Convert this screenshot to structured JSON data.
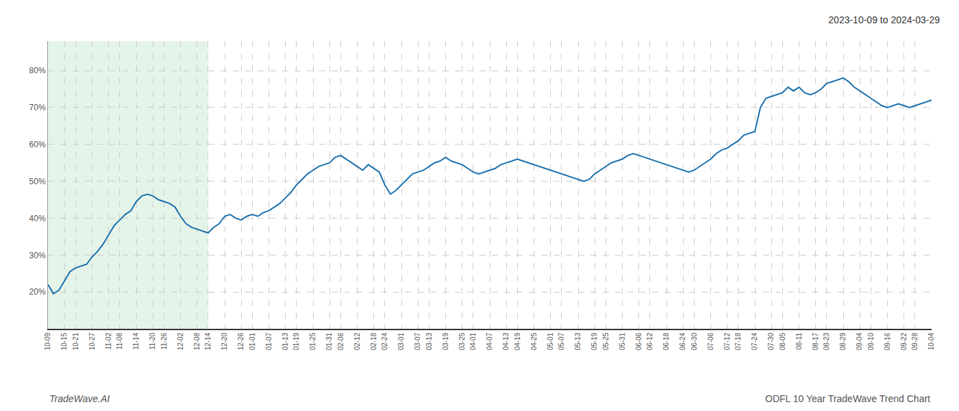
{
  "chart_data": {
    "type": "line",
    "title": "2023-10-09 to 2024-03-29",
    "annotations": [
      {
        "text": "TradeWave.AI"
      },
      {
        "text": "ODFL 10 Year TradeWave Trend Chart"
      }
    ],
    "categories": [
      "10-09",
      null,
      null,
      "10-15",
      null,
      "10-21",
      null,
      null,
      "10-27",
      null,
      null,
      "11-02",
      null,
      "11-08",
      null,
      null,
      "11-14",
      null,
      null,
      "11-20",
      null,
      "11-26",
      null,
      null,
      "12-02",
      null,
      null,
      "12-08",
      null,
      "12-14",
      null,
      null,
      "12-20",
      null,
      null,
      "12-26",
      null,
      "01-01",
      null,
      null,
      "01-07",
      null,
      null,
      "01-13",
      null,
      "01-19",
      null,
      null,
      "01-25",
      null,
      null,
      "01-31",
      null,
      "02-06",
      null,
      null,
      "02-12",
      null,
      null,
      "02-18",
      null,
      "02-24",
      null,
      null,
      "03-01",
      null,
      null,
      "03-07",
      null,
      "03-13",
      null,
      null,
      "03-19",
      null,
      null,
      "03-25",
      null,
      "04-01",
      null,
      null,
      "04-07",
      null,
      null,
      "04-13",
      null,
      "04-19",
      null,
      null,
      "04-25",
      null,
      null,
      "05-01",
      null,
      "05-07",
      null,
      null,
      "05-13",
      null,
      null,
      "05-19",
      null,
      "05-25",
      null,
      null,
      "05-31",
      null,
      null,
      "06-06",
      null,
      "06-12",
      null,
      null,
      "06-18",
      null,
      null,
      "06-24",
      null,
      "06-30",
      null,
      null,
      "07-06",
      null,
      null,
      "07-12",
      null,
      "07-18",
      null,
      null,
      "07-24",
      null,
      null,
      "07-30",
      null,
      "08-05",
      null,
      null,
      "08-11",
      null,
      null,
      "08-17",
      null,
      "08-23",
      null,
      null,
      "08-29",
      null,
      null,
      "09-04",
      null,
      "09-10",
      null,
      null,
      "09-16",
      null,
      null,
      "09-22",
      null,
      "09-28",
      null,
      null,
      "10-04"
    ],
    "values": [
      22.0,
      19.5,
      20.5,
      23.0,
      25.5,
      26.5,
      27.0,
      27.5,
      29.5,
      31.0,
      33.0,
      35.5,
      38.0,
      39.5,
      41.0,
      42.0,
      44.5,
      46.0,
      46.5,
      46.0,
      45.0,
      44.5,
      44.0,
      43.0,
      40.5,
      38.5,
      37.5,
      37.0,
      36.5,
      36.0,
      37.5,
      38.5,
      40.5,
      41.0,
      40.0,
      39.5,
      40.5,
      41.0,
      40.5,
      41.5,
      42.0,
      43.0,
      44.0,
      45.5,
      47.0,
      49.0,
      50.5,
      52.0,
      53.0,
      54.0,
      54.5,
      55.0,
      56.5,
      57.0,
      56.0,
      55.0,
      54.0,
      53.0,
      54.5,
      53.5,
      52.5,
      49.0,
      46.5,
      47.5,
      49.0,
      50.5,
      52.0,
      52.5,
      53.0,
      54.0,
      55.0,
      55.5,
      56.5,
      55.5,
      55.0,
      54.5,
      53.5,
      52.5,
      52.0,
      52.5,
      53.0,
      53.5,
      54.5,
      55.0,
      55.5,
      56.0,
      55.5,
      55.0,
      54.5,
      54.0,
      53.5,
      53.0,
      52.5,
      52.0,
      51.5,
      51.0,
      50.5,
      50.0,
      50.5,
      52.0,
      53.0,
      54.0,
      55.0,
      55.5,
      56.0,
      57.0,
      57.5,
      57.0,
      56.5,
      56.0,
      55.5,
      55.0,
      54.5,
      54.0,
      53.5,
      53.0,
      52.5,
      53.0,
      54.0,
      55.0,
      56.0,
      57.5,
      58.5,
      59.0,
      60.0,
      61.0,
      62.5,
      63.0,
      63.5,
      70.0,
      72.5,
      73.0,
      73.5,
      74.0,
      75.5,
      74.5,
      75.5,
      74.0,
      73.5,
      74.0,
      75.0,
      76.5,
      77.0,
      77.5,
      78.0,
      77.0,
      75.5,
      74.5,
      73.5,
      72.5,
      71.5,
      70.5,
      70.0,
      70.5,
      71.0,
      70.5,
      70.0,
      70.5,
      71.0,
      71.5,
      72.0
    ],
    "color": "#1a6fad",
    "ylim": [
      10,
      88
    ],
    "yticks": [
      {
        "value": 20,
        "label": "20%"
      },
      {
        "value": 30,
        "label": "30%"
      },
      {
        "value": 40,
        "label": "40%"
      },
      {
        "value": 50,
        "label": "50%"
      },
      {
        "value": 60,
        "label": "60%"
      },
      {
        "value": 70,
        "label": "70%"
      },
      {
        "value": 80,
        "label": "80%"
      }
    ],
    "grid": true,
    "shaded_region": {
      "from": "10-09",
      "to": "12-14",
      "color": "#d4edda"
    }
  }
}
